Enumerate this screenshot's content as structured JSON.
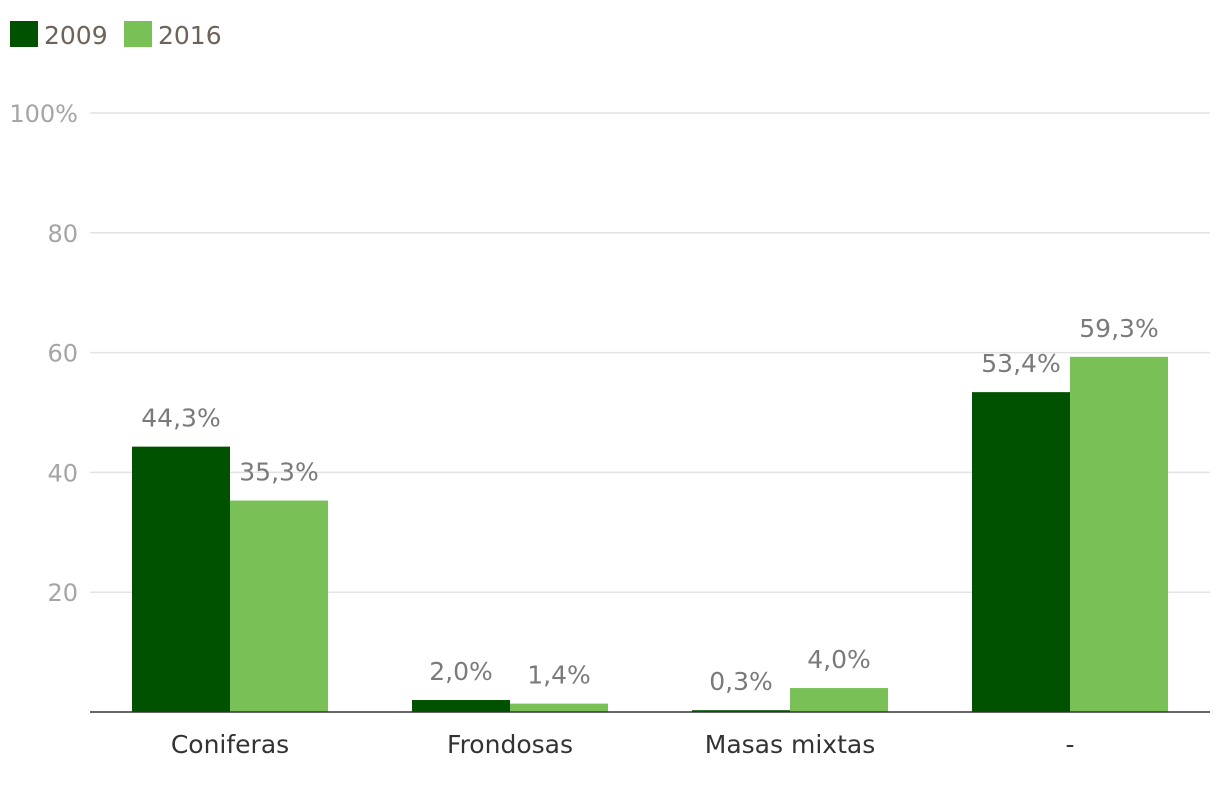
{
  "chart_data": {
    "type": "bar",
    "title": "",
    "xlabel": "",
    "ylabel": "",
    "categories": [
      "Coniferas",
      "Frondosas",
      "Masas mixtas",
      "-"
    ],
    "series": [
      {
        "name": "2009",
        "color": "#005200",
        "values": [
          44.3,
          2.0,
          0.3,
          53.4
        ],
        "labels": [
          "44,3%",
          "2,0%",
          "0,3%",
          "53,4%"
        ]
      },
      {
        "name": "2016",
        "color": "#79c157",
        "values": [
          35.3,
          1.4,
          4.0,
          59.3
        ],
        "labels": [
          "35,3%",
          "1,4%",
          "4,0%",
          "59,3%"
        ]
      }
    ],
    "ylim": [
      0,
      100
    ],
    "yticks": [
      20,
      40,
      60,
      80,
      100
    ],
    "ytick_labels": [
      "20",
      "40",
      "60",
      "80",
      "100%"
    ],
    "grid": true,
    "legend_position": "top-left"
  }
}
